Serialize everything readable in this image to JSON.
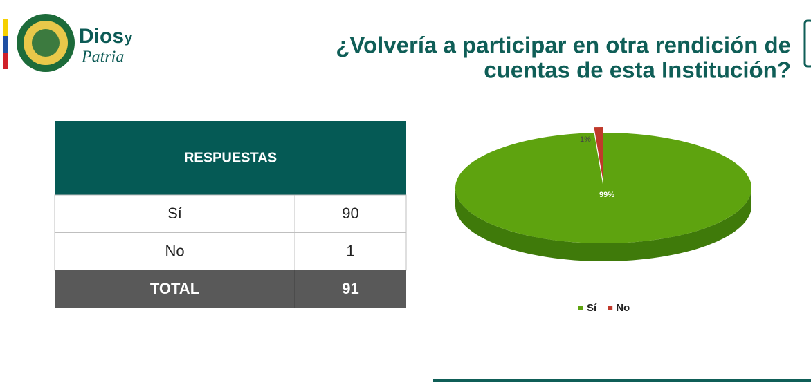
{
  "logo": {
    "word1": "Dios",
    "word2": "y",
    "word3": "Patria"
  },
  "header": {
    "title_lines": [
      "¿Volvería a participar en otra rendición de",
      "cuentas de esta Institución?"
    ]
  },
  "table": {
    "header": "RESPUESTAS",
    "rows": [
      [
        "Sí",
        90
      ],
      [
        "No",
        1
      ]
    ],
    "total": [
      "TOTAL",
      91
    ]
  },
  "chart_data": {
    "type": "pie",
    "categories": [
      "Sí",
      "No"
    ],
    "values": [
      99,
      1
    ],
    "value_labels": [
      "99%",
      "1%"
    ],
    "colors": [
      "#5ea30f",
      "#c0392b"
    ],
    "legend": "bottom"
  }
}
